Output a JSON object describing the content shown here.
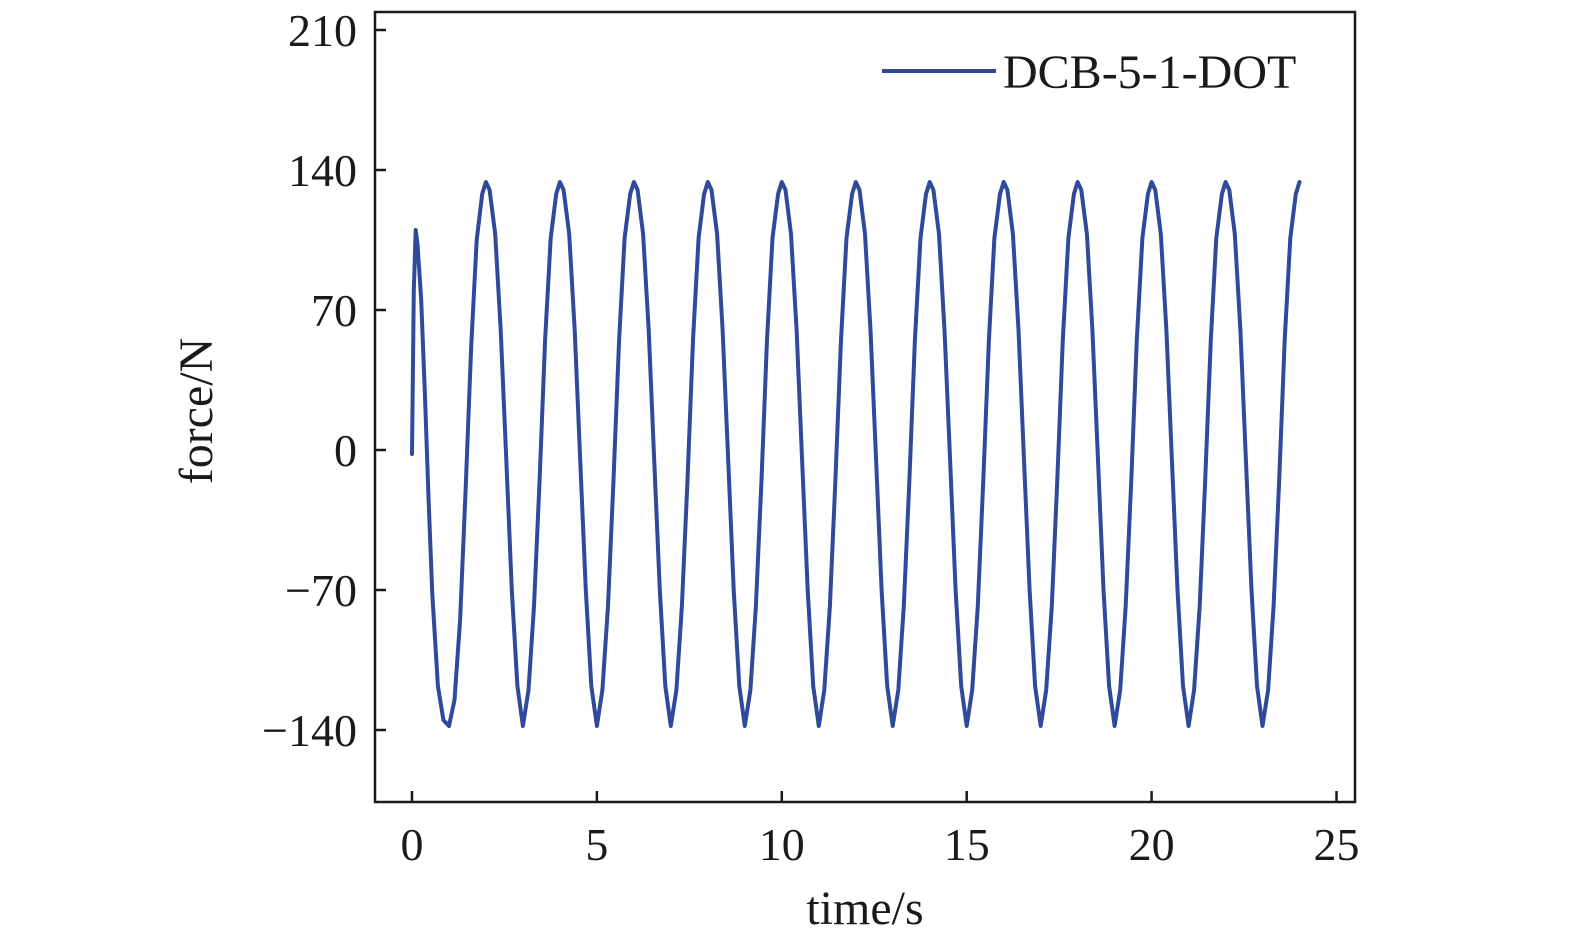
{
  "chart_data": {
    "type": "line",
    "title": "",
    "xlabel": "time/s",
    "ylabel": "force/N",
    "xlim": [
      -1,
      25.5
    ],
    "ylim": [
      -176,
      219
    ],
    "xticks": [
      0,
      5,
      10,
      15,
      20,
      25
    ],
    "xtick_labels": [
      "0",
      "5",
      "10",
      "15",
      "20",
      "25"
    ],
    "yticks": [
      -140,
      -70,
      0,
      70,
      140,
      210
    ],
    "ytick_labels": [
      "−140",
      "−70",
      "0",
      "70",
      "140",
      "210"
    ],
    "grid": false,
    "legend": {
      "position": "top-right",
      "entries": [
        "DCB-5-1-DOT"
      ]
    },
    "colors": {
      "series": "#2e4a9a",
      "axis": "#1a1a1a"
    },
    "series": [
      {
        "name": "DCB-5-1-DOT",
        "x": [
          0.0,
          0.05,
          0.1,
          0.15,
          0.25,
          0.35,
          0.45,
          0.55,
          0.7,
          0.85,
          1.0,
          1.15,
          1.3,
          1.45,
          1.6,
          1.75,
          1.9,
          2.0,
          2.1,
          2.25,
          2.4,
          2.55,
          2.7,
          2.85,
          3.0,
          3.15,
          3.3,
          3.45,
          3.6,
          3.75,
          3.9,
          4.0,
          4.1,
          4.25,
          4.4,
          4.55,
          4.7,
          4.85,
          5.0,
          5.15,
          5.3,
          5.45,
          5.6,
          5.75,
          5.9,
          6.0,
          6.1,
          6.25,
          6.4,
          6.55,
          6.7,
          6.85,
          7.0,
          7.15,
          7.3,
          7.45,
          7.6,
          7.75,
          7.9,
          8.0,
          8.1,
          8.25,
          8.4,
          8.55,
          8.7,
          8.85,
          9.0,
          9.15,
          9.3,
          9.45,
          9.6,
          9.75,
          9.9,
          10.0,
          10.1,
          10.25,
          10.4,
          10.55,
          10.7,
          10.85,
          11.0,
          11.15,
          11.3,
          11.45,
          11.6,
          11.75,
          11.9,
          12.0,
          12.1,
          12.25,
          12.4,
          12.55,
          12.7,
          12.85,
          13.0,
          13.15,
          13.3,
          13.45,
          13.6,
          13.75,
          13.9,
          14.0,
          14.1,
          14.25,
          14.4,
          14.55,
          14.7,
          14.85,
          15.0,
          15.15,
          15.3,
          15.45,
          15.6,
          15.75,
          15.9,
          16.0,
          16.1,
          16.25,
          16.4,
          16.55,
          16.7,
          16.85,
          17.0,
          17.15,
          17.3,
          17.45,
          17.6,
          17.75,
          17.9,
          18.0,
          18.1,
          18.25,
          18.4,
          18.55,
          18.7,
          18.85,
          19.0,
          19.15,
          19.3,
          19.45,
          19.6,
          19.75,
          19.9,
          20.0,
          20.1,
          20.25,
          20.4,
          20.55,
          20.7,
          20.85,
          21.0,
          21.15,
          21.3,
          21.45,
          21.6,
          21.75,
          21.9,
          22.0,
          22.1,
          22.25,
          22.4,
          22.55,
          22.7,
          22.85,
          23.0,
          23.15,
          23.3,
          23.45,
          23.6,
          23.75,
          23.9,
          24.0
        ],
        "y": [
          -2,
          80,
          110,
          103,
          75,
          28,
          -25,
          -72,
          -118,
          -135,
          -138,
          -125,
          -85,
          -20,
          52,
          105,
          128,
          134,
          130,
          108,
          60,
          -5,
          -70,
          -118,
          -138,
          -120,
          -78,
          -15,
          55,
          106,
          128,
          134,
          130,
          108,
          60,
          -5,
          -70,
          -118,
          -138,
          -120,
          -78,
          -15,
          55,
          106,
          128,
          134,
          130,
          108,
          60,
          -5,
          -70,
          -118,
          -138,
          -120,
          -78,
          -15,
          55,
          106,
          128,
          134,
          130,
          108,
          60,
          -5,
          -70,
          -118,
          -138,
          -120,
          -78,
          -15,
          55,
          106,
          128,
          134,
          130,
          108,
          60,
          -5,
          -70,
          -118,
          -138,
          -120,
          -78,
          -15,
          55,
          106,
          128,
          134,
          130,
          108,
          60,
          -5,
          -70,
          -118,
          -138,
          -120,
          -78,
          -15,
          55,
          106,
          128,
          134,
          130,
          108,
          60,
          -5,
          -70,
          -118,
          -138,
          -120,
          -78,
          -15,
          55,
          106,
          128,
          134,
          130,
          108,
          60,
          -5,
          -70,
          -118,
          -138,
          -120,
          -78,
          -15,
          55,
          106,
          128,
          134,
          130,
          108,
          60,
          -5,
          -70,
          -118,
          -138,
          -120,
          -78,
          -15,
          55,
          106,
          128,
          134,
          130,
          108,
          60,
          -5,
          -70,
          -118,
          -138,
          -120,
          -78,
          -15,
          55,
          106,
          128,
          134,
          130,
          108,
          60,
          -5,
          -70,
          -118,
          -138,
          -120,
          -78,
          -15,
          55,
          106,
          128,
          134
        ]
      }
    ]
  }
}
